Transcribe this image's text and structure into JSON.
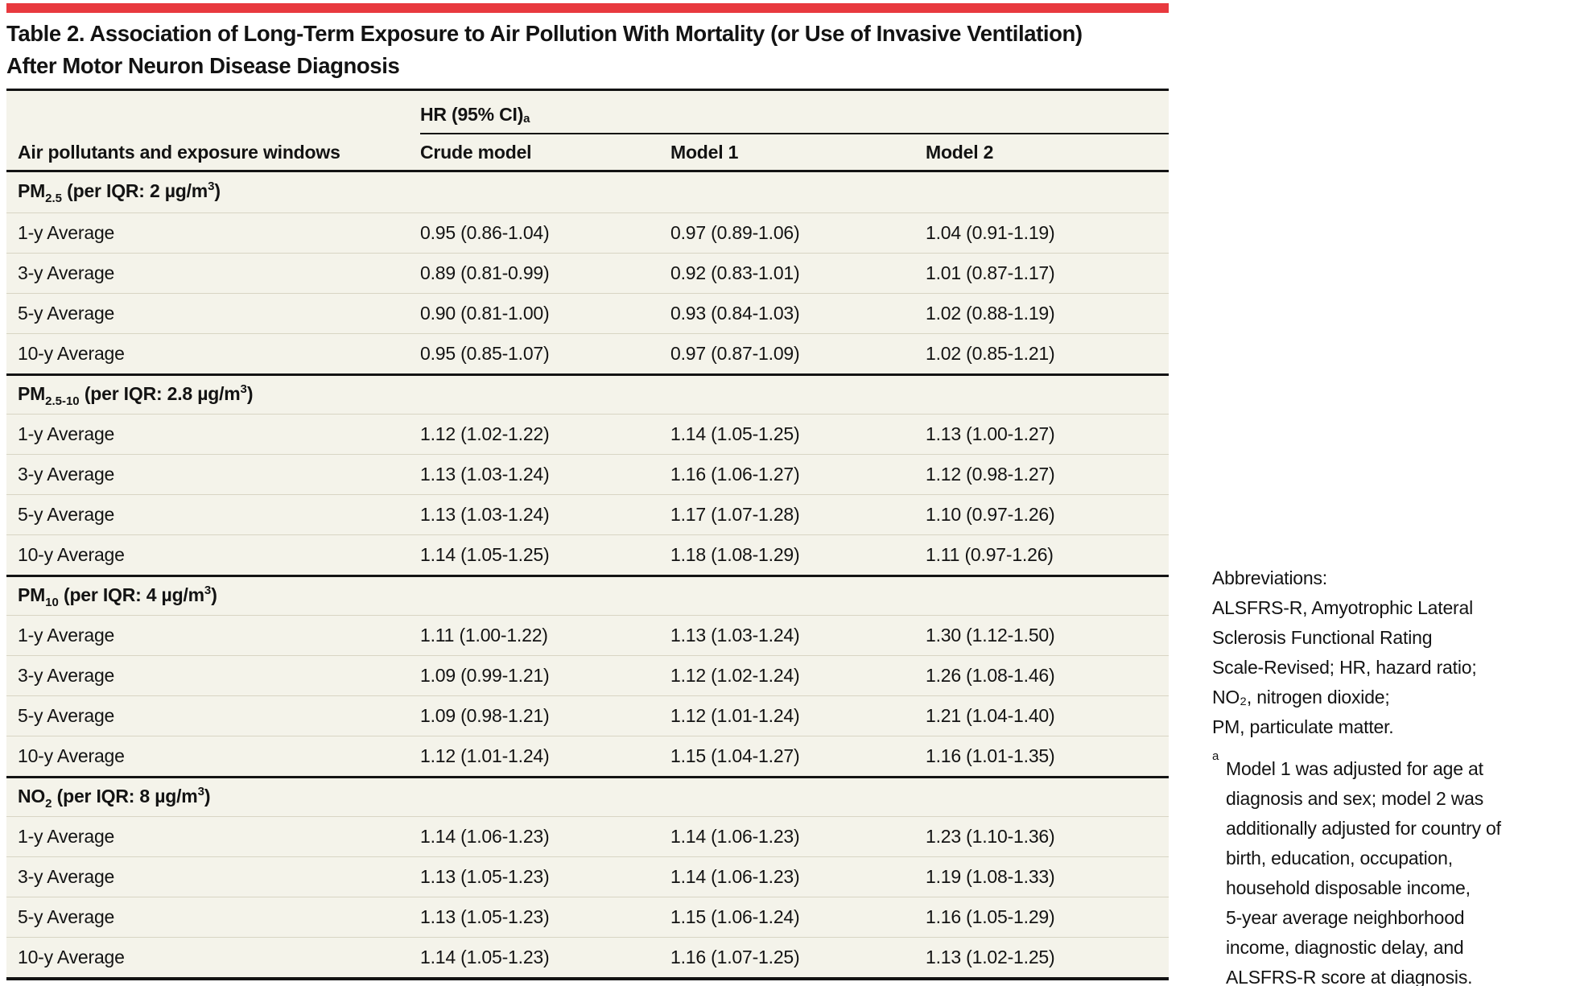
{
  "colors": {
    "accent_red": "#e8393e",
    "table_background": "#f4f3ea",
    "light_rule": "#d8d5c4",
    "dark_rule": "#131313"
  },
  "title": {
    "lines": [
      "Table 2. Association of Long-Term Exposure to Air Pollution With Mortality (or Use of Invasive Ventilation)",
      "After Motor Neuron Disease Diagnosis"
    ]
  },
  "table": {
    "col_group_header": {
      "text": "HR (95% CI)",
      "sup": "a"
    },
    "columns": [
      "Air pollutants and exposure windows",
      "Crude model",
      "Model 1",
      "Model 2"
    ],
    "sections": [
      {
        "label": {
          "base": "PM",
          "sub": "2.5",
          "mid": " (per IQR: 2 µg/m",
          "sup": "3",
          "tail": ")"
        },
        "rows": [
          {
            "cells": [
              "1-y Average",
              "0.95 (0.86-1.04)",
              "0.97 (0.89-1.06)",
              "1.04 (0.91-1.19)"
            ]
          },
          {
            "cells": [
              "3-y Average",
              "0.89 (0.81-0.99)",
              "0.92 (0.83-1.01)",
              "1.01 (0.87-1.17)"
            ]
          },
          {
            "cells": [
              "5-y Average",
              "0.90 (0.81-1.00)",
              "0.93 (0.84-1.03)",
              "1.02 (0.88-1.19)"
            ]
          },
          {
            "cells": [
              "10-y Average",
              "0.95 (0.85-1.07)",
              "0.97 (0.87-1.09)",
              "1.02 (0.85-1.21)"
            ]
          }
        ]
      },
      {
        "label": {
          "base": "PM",
          "sub": "2.5-10",
          "mid": " (per IQR: 2.8 µg/m",
          "sup": "3",
          "tail": ")"
        },
        "rows": [
          {
            "cells": [
              "1-y Average",
              "1.12 (1.02-1.22)",
              "1.14 (1.05-1.25)",
              "1.13 (1.00-1.27)"
            ]
          },
          {
            "cells": [
              "3-y Average",
              "1.13 (1.03-1.24)",
              "1.16 (1.06-1.27)",
              "1.12 (0.98-1.27)"
            ]
          },
          {
            "cells": [
              "5-y Average",
              "1.13 (1.03-1.24)",
              "1.17 (1.07-1.28)",
              "1.10 (0.97-1.26)"
            ]
          },
          {
            "cells": [
              "10-y Average",
              "1.14 (1.05-1.25)",
              "1.18 (1.08-1.29)",
              "1.11 (0.97-1.26)"
            ]
          }
        ]
      },
      {
        "label": {
          "base": "PM",
          "sub": "10",
          "mid": " (per IQR: 4 µg/m",
          "sup": "3",
          "tail": ")"
        },
        "rows": [
          {
            "cells": [
              "1-y Average",
              "1.11 (1.00-1.22)",
              "1.13 (1.03-1.24)",
              "1.30 (1.12-1.50)"
            ]
          },
          {
            "cells": [
              "3-y Average",
              "1.09 (0.99-1.21)",
              "1.12 (1.02-1.24)",
              "1.26 (1.08-1.46)"
            ]
          },
          {
            "cells": [
              "5-y Average",
              "1.09 (0.98-1.21)",
              "1.12 (1.01-1.24)",
              "1.21 (1.04-1.40)"
            ]
          },
          {
            "cells": [
              "10-y Average",
              "1.12 (1.01-1.24)",
              "1.15 (1.04-1.27)",
              "1.16 (1.01-1.35)"
            ]
          }
        ]
      },
      {
        "label": {
          "base": "NO",
          "sub": "2",
          "mid": " (per IQR: 8 µg/m",
          "sup": "3",
          "tail": ")"
        },
        "rows": [
          {
            "cells": [
              "1-y Average",
              "1.14 (1.06-1.23)",
              "1.14 (1.06-1.23)",
              "1.23 (1.10-1.36)"
            ]
          },
          {
            "cells": [
              "3-y Average",
              "1.13 (1.05-1.23)",
              "1.14 (1.06-1.23)",
              "1.19 (1.08-1.33)"
            ]
          },
          {
            "cells": [
              "5-y Average",
              "1.13 (1.05-1.23)",
              "1.15 (1.06-1.24)",
              "1.16 (1.05-1.29)"
            ]
          },
          {
            "cells": [
              "10-y Average",
              "1.14 (1.05-1.23)",
              "1.16 (1.07-1.25)",
              "1.13 (1.02-1.25)"
            ]
          }
        ]
      }
    ]
  },
  "notes": {
    "abbreviations_lines": [
      "Abbreviations:",
      "ALSFRS-R, Amyotrophic Lateral",
      "Sclerosis Functional Rating",
      "Scale-Revised; HR, hazard ratio;",
      "NO₂, nitrogen dioxide;",
      "PM, particulate matter."
    ],
    "footnote_marker": "a",
    "footnote_lines": [
      "Model 1 was adjusted for age at",
      "diagnosis and sex; model 2 was",
      "additionally adjusted for country of",
      "birth, education, occupation,",
      "household disposable income,",
      "5-year average neighborhood",
      "income, diagnostic delay, and",
      "ALSFRS-R score at diagnosis."
    ]
  }
}
